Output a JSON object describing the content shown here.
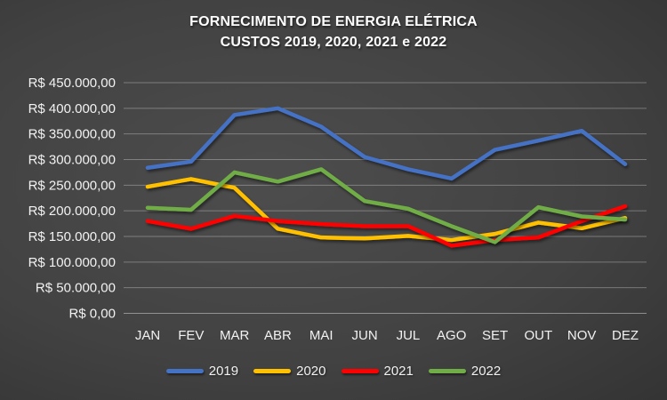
{
  "title": {
    "line1": "FORNECIMENTO DE ENERGIA ELÉTRICA",
    "line2": "CUSTOS 2019, 2020, 2021 e 2022"
  },
  "colors": {
    "background": "#3f3f3f",
    "text": "#f2f2f2",
    "gridline": "rgba(255,255,255,0.30)",
    "baseline": "rgba(255,255,255,0.42)",
    "series_2019": "#4472C4",
    "series_2020": "#FFC000",
    "series_2021": "#FF0000",
    "series_2022": "#70AD47"
  },
  "chart_data": {
    "type": "line",
    "title": "FORNECIMENTO DE ENERGIA ELÉTRICA — CUSTOS 2019, 2020, 2021 e 2022",
    "categories": [
      "JAN",
      "FEV",
      "MAR",
      "ABR",
      "MAI",
      "JUN",
      "JUL",
      "AGO",
      "SET",
      "OUT",
      "NOV",
      "DEZ"
    ],
    "series": [
      {
        "name": "2019",
        "color": "#4472C4",
        "values": [
          284000,
          296000,
          387000,
          400000,
          364000,
          305000,
          281000,
          263000,
          319000,
          337000,
          356000,
          291000
        ]
      },
      {
        "name": "2020",
        "color": "#FFC000",
        "values": [
          247000,
          262000,
          245000,
          165000,
          148000,
          146000,
          151000,
          143000,
          155000,
          177000,
          166000,
          186000
        ]
      },
      {
        "name": "2021",
        "color": "#FF0000",
        "values": [
          180000,
          165000,
          190000,
          180000,
          174000,
          170000,
          170000,
          132000,
          143000,
          148000,
          180000,
          209000
        ]
      },
      {
        "name": "2022",
        "color": "#70AD47",
        "values": [
          206000,
          202000,
          275000,
          257000,
          281000,
          219000,
          204000,
          170000,
          139000,
          207000,
          189000,
          183000
        ]
      }
    ],
    "ylim": [
      0,
      450000
    ],
    "ytick_step": 50000,
    "y_tick_labels": [
      "R$ 450.000,00",
      "R$ 400.000,00",
      "R$ 350.000,00",
      "R$ 300.000,00",
      "R$ 250.000,00",
      "R$ 200.000,00",
      "R$ 150.000,00",
      "R$ 100.000,00",
      "R$ 50.000,00",
      "R$ 0,00"
    ],
    "xlabel": "",
    "ylabel": "",
    "grid": true,
    "legend_position": "bottom",
    "legend_entries": [
      "2019",
      "2020",
      "2021",
      "2022"
    ]
  }
}
